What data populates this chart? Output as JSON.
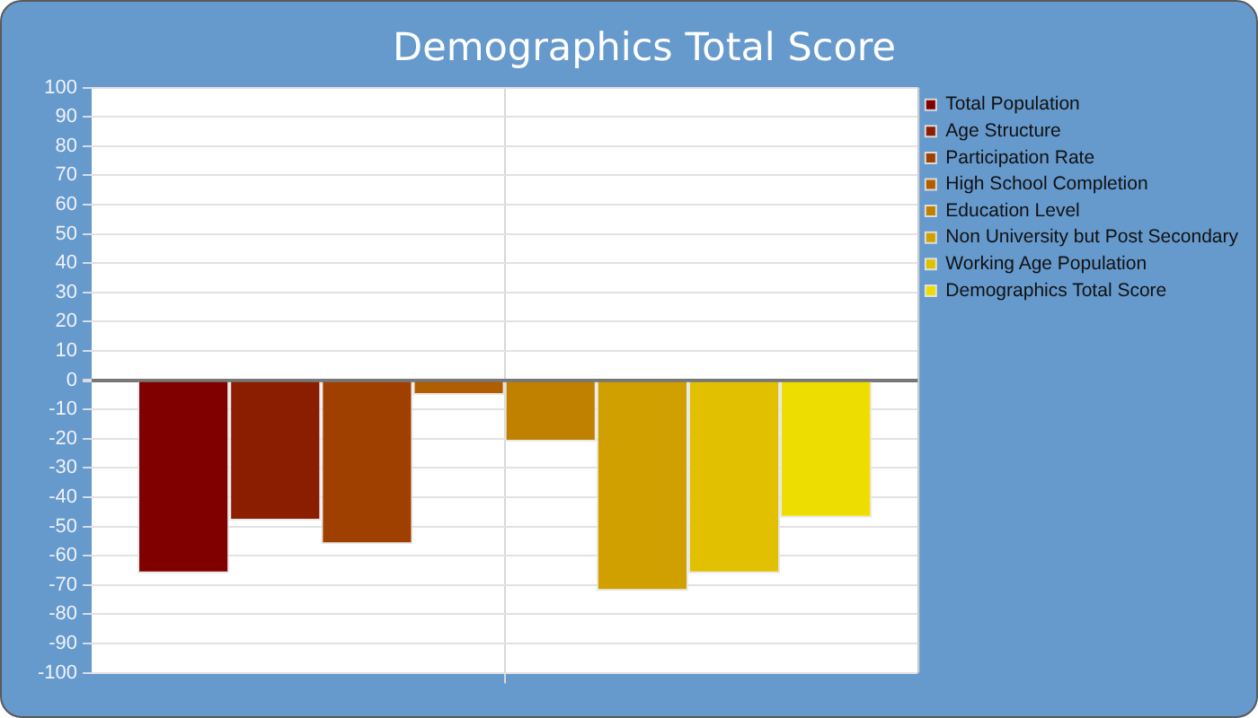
{
  "chart_data": {
    "type": "bar",
    "title": "Demographics Total Score",
    "categories": [
      null
    ],
    "series": [
      {
        "name": "Total Population",
        "color": "#800000",
        "values": [
          -66
        ]
      },
      {
        "name": "Age Structure",
        "color": "#8c1e00",
        "values": [
          -48
        ]
      },
      {
        "name": "Participation Rate",
        "color": "#a04000",
        "values": [
          -56
        ]
      },
      {
        "name": "High School Completion",
        "color": "#b05e00",
        "values": [
          -5
        ]
      },
      {
        "name": "Education Level",
        "color": "#c08000",
        "values": [
          -21
        ]
      },
      {
        "name": "Non University but Post Secondary",
        "color": "#d0a000",
        "values": [
          -72
        ]
      },
      {
        "name": "Working Age Population",
        "color": "#e0c000",
        "values": [
          -66
        ]
      },
      {
        "name": "Demographics Total Score",
        "color": "#eedd00",
        "values": [
          -47
        ]
      }
    ],
    "ylim": [
      -100,
      100
    ],
    "yticks": [
      -100,
      -90,
      -80,
      -70,
      -60,
      -50,
      -40,
      -30,
      -20,
      -10,
      0,
      10,
      20,
      30,
      40,
      50,
      60,
      70,
      80,
      90,
      100
    ],
    "grid": true,
    "legend": "top right"
  }
}
